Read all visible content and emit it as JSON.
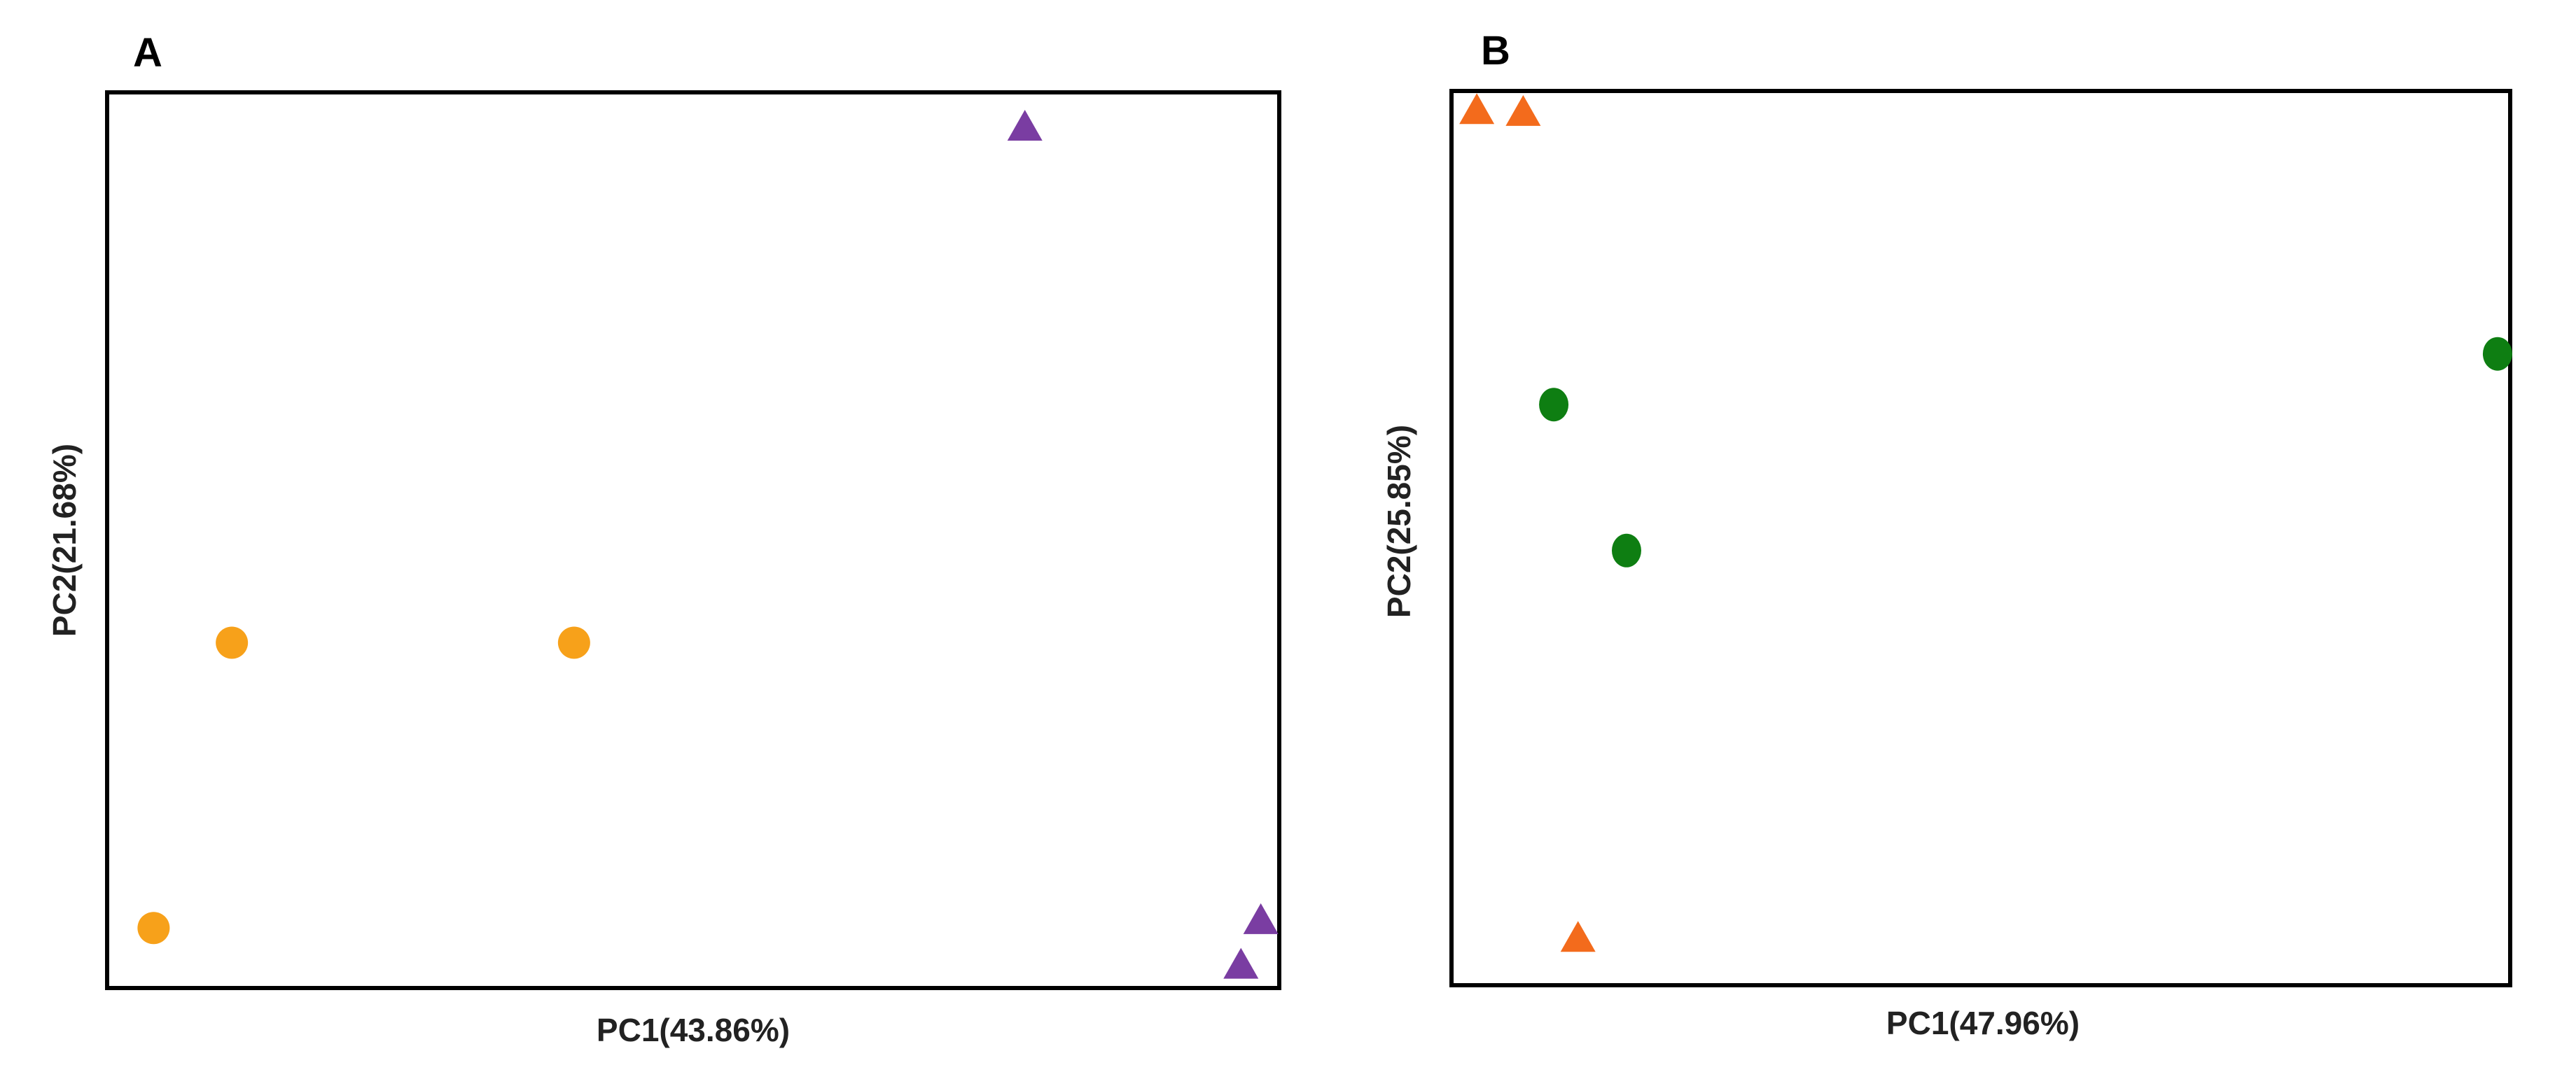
{
  "chart_data": [
    {
      "type": "scatter",
      "panel_label": "A",
      "xlabel": "PC1(43.86%)",
      "ylabel": "PC2(21.68%)",
      "xlim": [
        0,
        100
      ],
      "ylim": [
        0,
        100
      ],
      "grid": false,
      "series": [
        {
          "marker": "circle",
          "color": "#F7A11A",
          "points": [
            {
              "x": 10.5,
              "y": 38.5
            },
            {
              "x": 39.8,
              "y": 38.5
            },
            {
              "x": 3.8,
              "y": 6.5
            }
          ]
        },
        {
          "marker": "triangle",
          "color": "#7A3DA2",
          "points": [
            {
              "x": 78.4,
              "y": 96.2
            },
            {
              "x": 98.6,
              "y": 7.2
            },
            {
              "x": 96.9,
              "y": 2.2
            }
          ]
        }
      ]
    },
    {
      "type": "scatter",
      "panel_label": "B",
      "xlabel": "PC1(47.96%)",
      "ylabel": "PC2(25.85%)",
      "xlim": [
        0,
        100
      ],
      "ylim": [
        0,
        100
      ],
      "grid": false,
      "series": [
        {
          "marker": "circle",
          "color": "#0E7E12",
          "points": [
            {
              "x": 9.5,
              "y": 65.0
            },
            {
              "x": 16.4,
              "y": 48.6
            },
            {
              "x": 99.0,
              "y": 70.7
            }
          ]
        },
        {
          "marker": "triangle",
          "color": "#F36B1C",
          "points": [
            {
              "x": 2.2,
              "y": 97.9
            },
            {
              "x": 6.6,
              "y": 97.7
            },
            {
              "x": 11.8,
              "y": 4.9
            }
          ]
        }
      ]
    }
  ]
}
